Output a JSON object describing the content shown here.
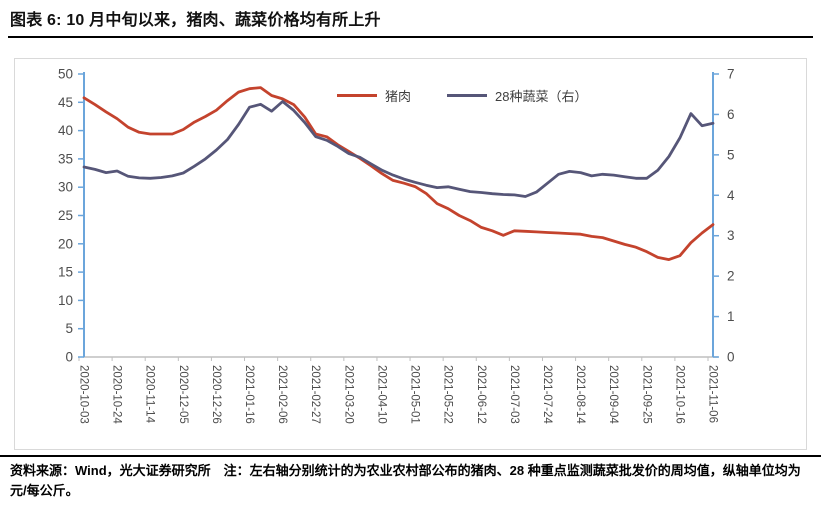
{
  "header": {
    "title": "图表 6: 10 月中旬以来，猪肉、蔬菜价格均有所上升"
  },
  "footer": {
    "text": "资料来源：Wind，光大证券研究所　注：左右轴分别统计的为农业农村部公布的猪肉、28 种重点监测蔬菜批发价的周均值，纵轴单位均为元/每公斤。"
  },
  "chart_data": {
    "type": "line",
    "legend_position": "top-center",
    "grid": false,
    "axis_color": "#6ba5db",
    "x_axis_line_color": "#bfbfbf",
    "tick_label_color": "#4d4d4d",
    "left_axis": {
      "min": 0,
      "max": 50,
      "ticks": [
        0,
        5,
        10,
        15,
        20,
        25,
        30,
        35,
        40,
        45,
        50
      ]
    },
    "right_axis": {
      "min": 0,
      "max": 7,
      "ticks": [
        0,
        1,
        2,
        3,
        4,
        5,
        6,
        7
      ]
    },
    "x": [
      "2020-10-03",
      "2020-10-10",
      "2020-10-17",
      "2020-10-24",
      "2020-10-31",
      "2020-11-07",
      "2020-11-14",
      "2020-11-21",
      "2020-11-28",
      "2020-12-05",
      "2020-12-12",
      "2020-12-19",
      "2020-12-26",
      "2021-01-02",
      "2021-01-09",
      "2021-01-16",
      "2021-01-23",
      "2021-01-30",
      "2021-02-06",
      "2021-02-13",
      "2021-02-20",
      "2021-02-27",
      "2021-03-06",
      "2021-03-13",
      "2021-03-20",
      "2021-03-27",
      "2021-04-03",
      "2021-04-10",
      "2021-04-17",
      "2021-04-24",
      "2021-05-01",
      "2021-05-08",
      "2021-05-15",
      "2021-05-22",
      "2021-05-29",
      "2021-06-05",
      "2021-06-12",
      "2021-06-19",
      "2021-06-26",
      "2021-07-03",
      "2021-07-10",
      "2021-07-17",
      "2021-07-24",
      "2021-07-31",
      "2021-08-07",
      "2021-08-14",
      "2021-08-21",
      "2021-08-28",
      "2021-09-04",
      "2021-09-11",
      "2021-09-18",
      "2021-09-25",
      "2021-10-02",
      "2021-10-09",
      "2021-10-16",
      "2021-10-23",
      "2021-10-30",
      "2021-11-06"
    ],
    "x_tick_labels": [
      "2020-10-03",
      "2020-10-24",
      "2020-11-14",
      "2020-12-05",
      "2020-12-26",
      "2021-01-16",
      "2021-02-06",
      "2021-02-27",
      "2021-03-20",
      "2021-04-10",
      "2021-05-01",
      "2021-05-22",
      "2021-06-12",
      "2021-07-03",
      "2021-07-24",
      "2021-08-14",
      "2021-09-04",
      "2021-09-25",
      "2021-10-16",
      "2021-11-06"
    ],
    "series": [
      {
        "name": "猪肉",
        "axis": "left",
        "color": "#c4432d",
        "values": [
          45.8,
          44.6,
          43.3,
          42.1,
          40.6,
          39.7,
          39.4,
          39.4,
          39.4,
          40.2,
          41.5,
          42.5,
          43.6,
          45.3,
          46.8,
          47.4,
          47.6,
          46.2,
          45.6,
          44.6,
          42.4,
          39.4,
          38.9,
          37.5,
          36.3,
          35.1,
          33.8,
          32.4,
          31.2,
          30.7,
          30.1,
          28.9,
          27.1,
          26.2,
          25.0,
          24.1,
          22.9,
          22.3,
          21.5,
          22.3,
          22.2,
          22.1,
          22.0,
          21.9,
          21.8,
          21.7,
          21.3,
          21.1,
          20.5,
          19.9,
          19.4,
          18.6,
          17.6,
          17.2,
          17.9,
          20.2,
          21.9,
          23.4
        ]
      },
      {
        "name": "28种蔬菜（右）",
        "axis": "right",
        "color": "#565678",
        "values": [
          4.7,
          4.64,
          4.56,
          4.6,
          4.47,
          4.43,
          4.42,
          4.44,
          4.48,
          4.55,
          4.72,
          4.9,
          5.12,
          5.38,
          5.75,
          6.18,
          6.25,
          6.08,
          6.32,
          6.1,
          5.8,
          5.45,
          5.36,
          5.21,
          5.03,
          4.94,
          4.78,
          4.62,
          4.5,
          4.4,
          4.32,
          4.25,
          4.19,
          4.21,
          4.15,
          4.09,
          4.07,
          4.04,
          4.02,
          4.01,
          3.97,
          4.08,
          4.3,
          4.52,
          4.59,
          4.56,
          4.48,
          4.52,
          4.5,
          4.46,
          4.42,
          4.42,
          4.62,
          4.96,
          5.42,
          6.02,
          5.72,
          5.78
        ]
      }
    ]
  }
}
